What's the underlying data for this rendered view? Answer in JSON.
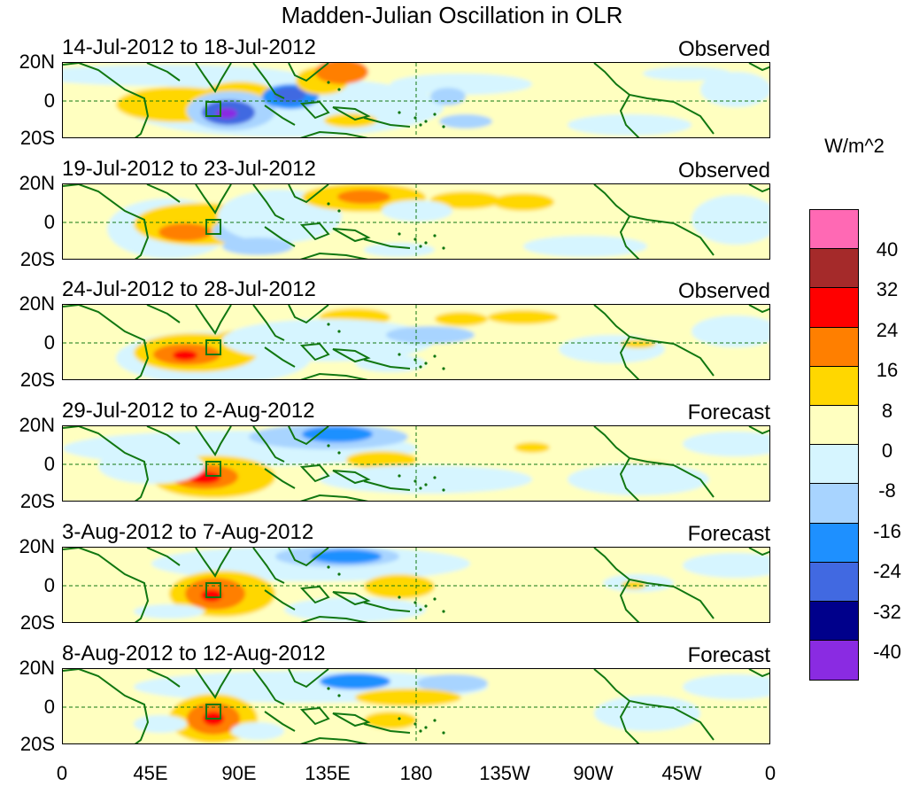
{
  "title": "Madden-Julian Oscillation in OLR",
  "panels": [
    {
      "dates": "14-Jul-2012 to 18-Jul-2012",
      "kind": "Observed"
    },
    {
      "dates": "19-Jul-2012 to 23-Jul-2012",
      "kind": "Observed"
    },
    {
      "dates": "24-Jul-2012 to 28-Jul-2012",
      "kind": "Observed"
    },
    {
      "dates": "29-Jul-2012 to 2-Aug-2012",
      "kind": "Forecast"
    },
    {
      "dates": "3-Aug-2012 to 7-Aug-2012",
      "kind": "Forecast"
    },
    {
      "dates": "8-Aug-2012 to 12-Aug-2012",
      "kind": "Forecast"
    }
  ],
  "lat_labels": [
    "20N",
    "0",
    "20S"
  ],
  "lon_labels": [
    "0",
    "45E",
    "90E",
    "135E",
    "180",
    "135W",
    "90W",
    "45W",
    "0"
  ],
  "colorbar": {
    "units": "W/m^2",
    "levels": [
      "40",
      "32",
      "24",
      "16",
      "8",
      "0",
      "-8",
      "-16",
      "-24",
      "-32",
      "-40"
    ],
    "colors": [
      "#ff69b4",
      "#a52a2a",
      "#ff0000",
      "#ff7f00",
      "#ffd700",
      "#ffffc0",
      "#d6f5ff",
      "#a8d4ff",
      "#1e90ff",
      "#4169e1",
      "#00008b",
      "#8a2be2"
    ]
  },
  "anomaly_colors": {
    "strong_pos": "#ff7f00",
    "peak_pos": "#ff0000",
    "pos": "#ffd700",
    "weak_pos": "#ffffc0",
    "weak_neg": "#d6f5ff",
    "neg": "#a8d4ff",
    "strong_neg": "#1e90ff",
    "peak_neg": "#4169e1",
    "extreme_neg": "#8a2be2",
    "coast": "#117711"
  }
}
